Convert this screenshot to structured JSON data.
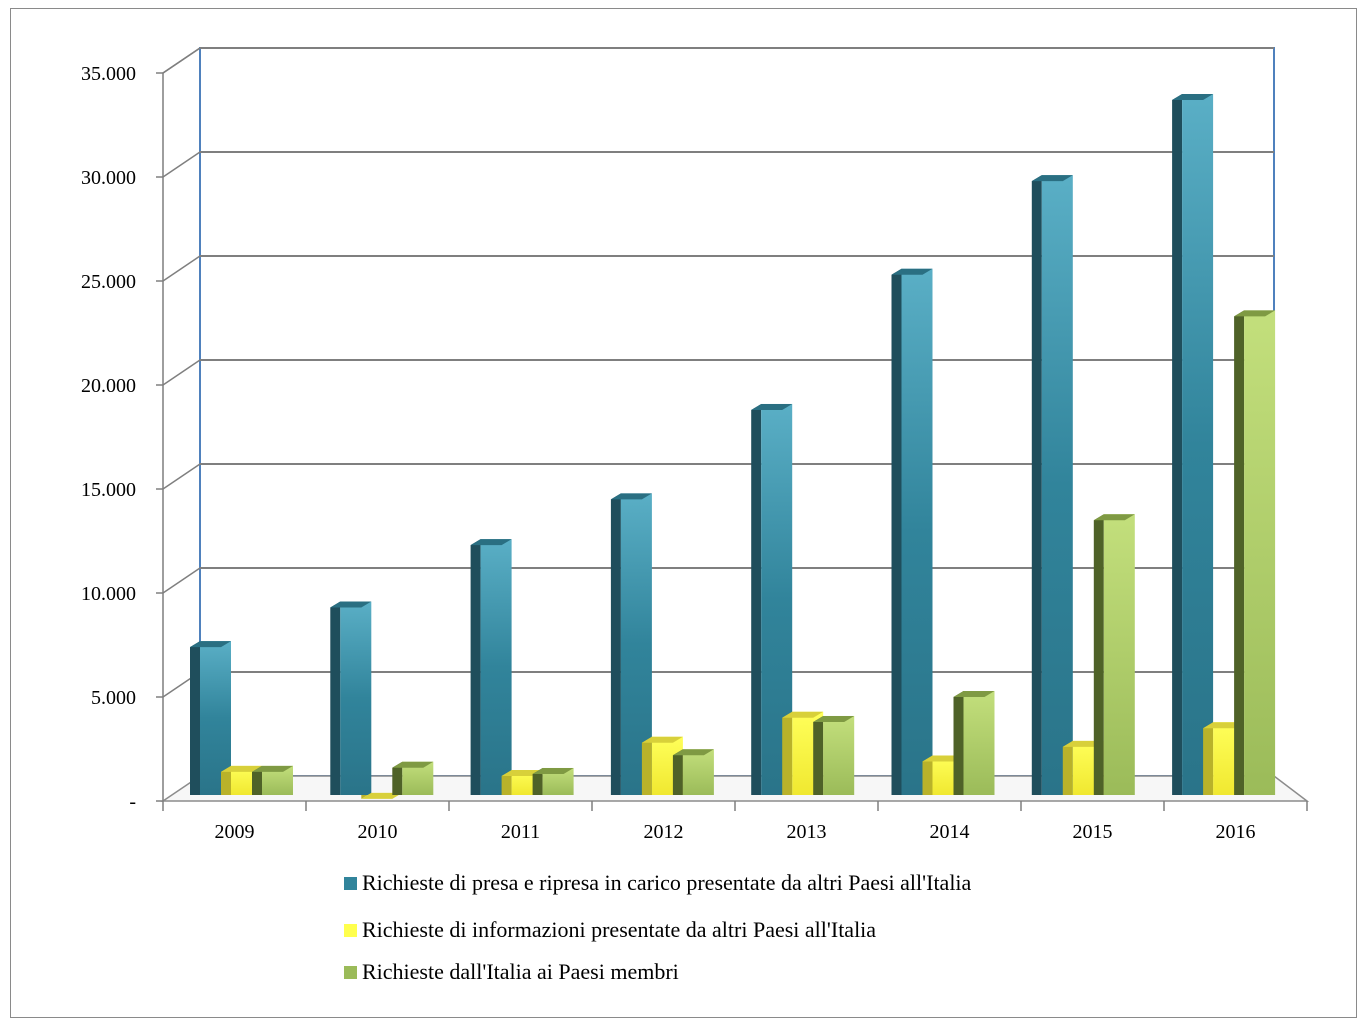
{
  "chart_data": {
    "type": "bar",
    "categories": [
      "2009",
      "2010",
      "2011",
      "2012",
      "2013",
      "2014",
      "2015",
      "2016"
    ],
    "series": [
      {
        "name": "Richieste di presa e ripresa in carico presentate da altri Paesi all'Italia",
        "values": [
          7400,
          9300,
          12300,
          14500,
          18800,
          25300,
          29800,
          33700
        ],
        "color": "#31849b"
      },
      {
        "name": "Richieste di informazioni presentate  da altri Paesi all'Italia",
        "values": [
          1400,
          100,
          1200,
          2800,
          4000,
          1900,
          2600,
          3500
        ],
        "color": "#ffff4d"
      },
      {
        "name": "Richieste dall'Italia ai Paesi membri",
        "values": [
          1400,
          1600,
          1300,
          2200,
          3800,
          5000,
          13500,
          23300
        ],
        "color": "#9bbb59"
      }
    ],
    "y_tick_labels": [
      "-",
      "5.000",
      "10.000",
      "15.000",
      "20.000",
      "25.000",
      "30.000",
      "35.000"
    ],
    "ylim": [
      0,
      35000
    ],
    "grid": true,
    "legend_position": "bottom",
    "title": "",
    "xlabel": "",
    "ylabel": ""
  }
}
